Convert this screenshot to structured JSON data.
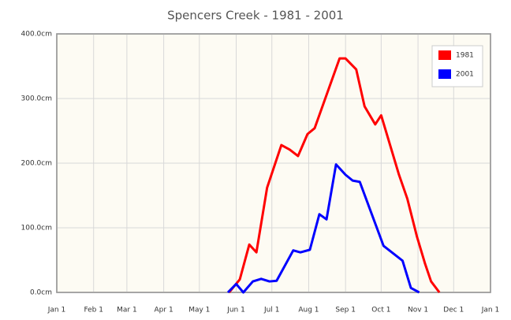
{
  "chart_data": {
    "type": "line",
    "title": "Spencers Creek - 1981 - 2001",
    "xlim": [
      0,
      365
    ],
    "xticks": [
      {
        "value": 0,
        "label": "Jan 1"
      },
      {
        "value": 31,
        "label": "Feb 1"
      },
      {
        "value": 59,
        "label": "Mar 1"
      },
      {
        "value": 90,
        "label": "Apr 1"
      },
      {
        "value": 120,
        "label": "May 1"
      },
      {
        "value": 151,
        "label": "Jun 1"
      },
      {
        "value": 181,
        "label": "Jul 1"
      },
      {
        "value": 212,
        "label": "Aug 1"
      },
      {
        "value": 243,
        "label": "Sep 1"
      },
      {
        "value": 273,
        "label": "Oct 1"
      },
      {
        "value": 304,
        "label": "Nov 1"
      },
      {
        "value": 334,
        "label": "Dec 1"
      },
      {
        "value": 365,
        "label": "Jan 1"
      }
    ],
    "ylim": [
      0,
      400
    ],
    "yticks": [
      {
        "value": 0,
        "label": "0.0cm"
      },
      {
        "value": 100,
        "label": "100.0cm"
      },
      {
        "value": 200,
        "label": "200.0cm"
      },
      {
        "value": 300,
        "label": "300.0cm"
      },
      {
        "value": 400,
        "label": "400.0cm"
      }
    ],
    "grid": true,
    "legend": "top-right",
    "series": [
      {
        "name": "1981",
        "color": "#ff0000",
        "x": [
          145,
          154,
          162,
          168,
          177,
          189,
          196,
          203,
          211,
          217,
          238,
          243,
          252,
          259,
          268,
          273,
          288,
          295,
          303,
          310,
          315,
          322
        ],
        "values": [
          0,
          20,
          74,
          62,
          162,
          228,
          221,
          211,
          245,
          254,
          362,
          362,
          345,
          288,
          260,
          274,
          182,
          145,
          87,
          44,
          17,
          0
        ]
      },
      {
        "name": "2001",
        "color": "#0000ff",
        "x": [
          144,
          151,
          157,
          165,
          172,
          179,
          185,
          199,
          205,
          213,
          221,
          227,
          235,
          243,
          249,
          255,
          275,
          282,
          291,
          298,
          305
        ],
        "values": [
          0,
          13,
          0,
          17,
          21,
          17,
          18,
          65,
          62,
          66,
          121,
          113,
          198,
          182,
          173,
          171,
          72,
          62,
          49,
          7,
          0
        ]
      }
    ]
  }
}
